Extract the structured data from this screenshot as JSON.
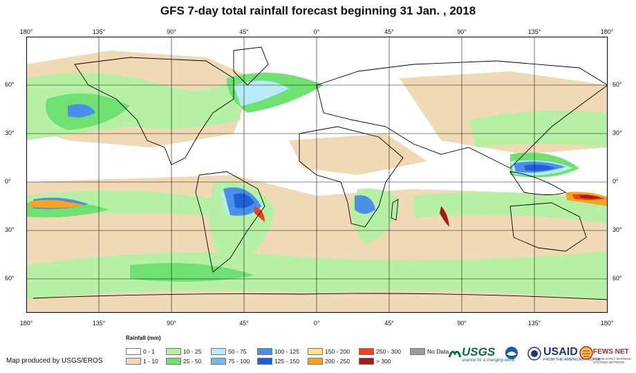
{
  "title": "GFS 7-day total rainfall forecast beginning 31 Jan. , 2018",
  "longitude_labels": [
    "180°",
    "135°",
    "90°",
    "45°",
    "0°",
    "45°",
    "90°",
    "135°",
    "180°"
  ],
  "latitude_labels": [
    "60°",
    "30°",
    "0°",
    "30°",
    "60°"
  ],
  "legend": {
    "title": "Rainfall (mm)",
    "items": [
      {
        "label": "0 - 1",
        "color": "#ffffff"
      },
      {
        "label": "1 - 10",
        "color": "#f0d9b5"
      },
      {
        "label": "10 - 25",
        "color": "#b6f0a4"
      },
      {
        "label": "25 - 50",
        "color": "#6fe072"
      },
      {
        "label": "50 - 75",
        "color": "#b6ecf7"
      },
      {
        "label": "75 - 100",
        "color": "#7ab6ee"
      },
      {
        "label": "100 - 125",
        "color": "#4a90e8"
      },
      {
        "label": "125 - 150",
        "color": "#1f5fd8"
      },
      {
        "label": "150 - 200",
        "color": "#fde38a"
      },
      {
        "label": "200 - 250",
        "color": "#f7a51d"
      },
      {
        "label": "250 - 300",
        "color": "#f2401a"
      },
      {
        "label": "> 300",
        "color": "#a51b1b"
      },
      {
        "label": "No Data",
        "color": "#9b9b9b"
      }
    ]
  },
  "credit": "Map produced by USGS/EROS",
  "logos": {
    "usgs": "USGS",
    "usgs_tagline": "science for a changing world",
    "noaa_icon": "noaa-emblem",
    "usaid": "USAID",
    "usaid_tagline": "FROM THE AMERICAN PEOPLE",
    "fews": "FEWS NET",
    "fews_tagline": "FAMINE EARLY WARNING SYSTEMS NETWORK"
  }
}
